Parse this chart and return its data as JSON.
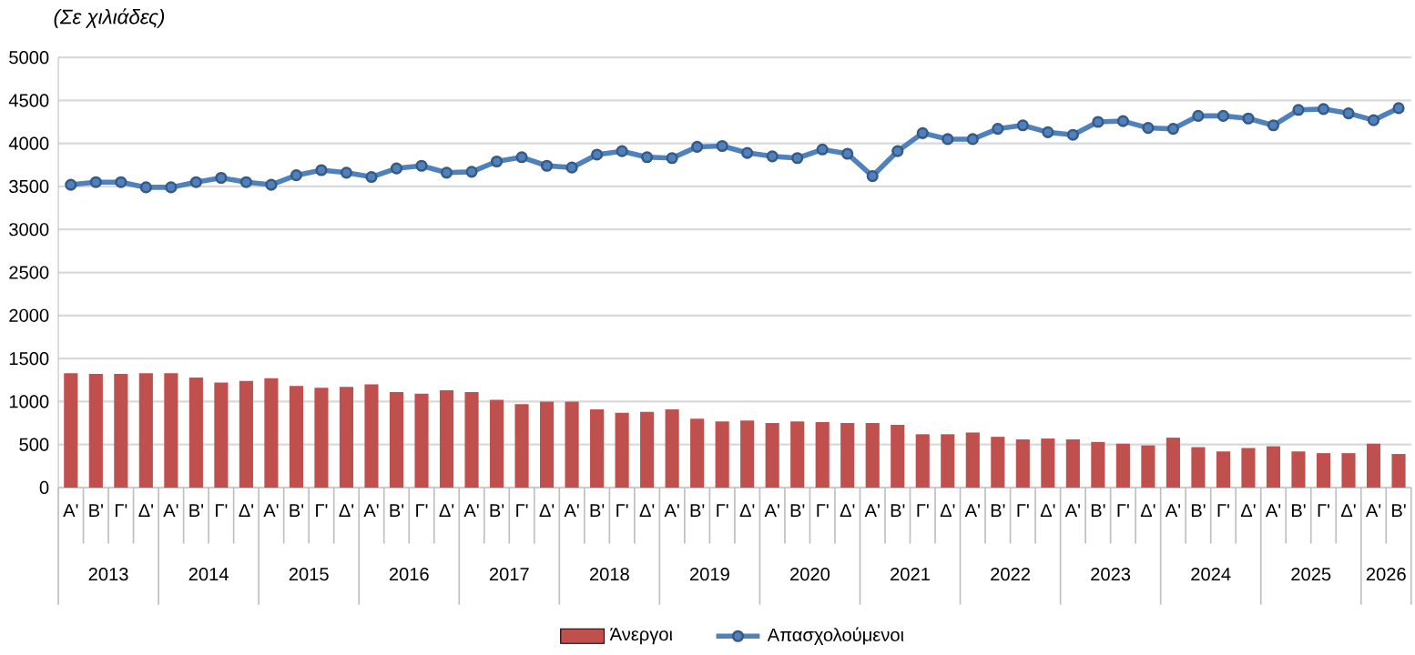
{
  "chart_data": {
    "type": "bar",
    "ylabel": "(Σε χιλιάδες)",
    "categories": [
      "Α'",
      "Β'",
      "Γ'",
      "Δ'",
      "Α'",
      "Β'",
      "Γ'",
      "Δ'",
      "Α'",
      "Β'",
      "Γ'",
      "Δ'",
      "Α'",
      "Β'",
      "Γ'",
      "Δ'",
      "Α'",
      "Β'",
      "Γ'",
      "Δ'",
      "Α'",
      "Β'",
      "Γ'",
      "Δ'",
      "Α'",
      "Β'",
      "Γ'",
      "Δ'",
      "Α'",
      "Β'",
      "Γ'",
      "Δ'",
      "Α'",
      "Β'",
      "Γ'",
      "Δ'",
      "Α'",
      "Β'",
      "Γ'",
      "Δ'",
      "Α'",
      "Β'",
      "Γ'",
      "Δ'",
      "Α'",
      "Β'",
      "Γ'",
      "Δ'",
      "Α'",
      "Β'",
      "Γ'",
      "Δ'",
      "Α'",
      "Β'"
    ],
    "annotations": [
      "2013",
      "2014",
      "2015",
      "2016",
      "2017",
      "2018",
      "2019",
      "2020",
      "2021",
      "2022",
      "2023",
      "2024",
      "2025",
      "2026"
    ],
    "series": [
      {
        "name": "Άνεργοι",
        "color": "#c0504d",
        "values": [
          1330,
          1320,
          1320,
          1330,
          1330,
          1280,
          1220,
          1240,
          1270,
          1180,
          1160,
          1170,
          1200,
          1110,
          1090,
          1130,
          1110,
          1020,
          970,
          1000,
          1000,
          910,
          870,
          880,
          910,
          800,
          770,
          780,
          750,
          770,
          760,
          750,
          750,
          730,
          620,
          620,
          640,
          590,
          560,
          570,
          560,
          530,
          510,
          490,
          580,
          470,
          420,
          460,
          480,
          420,
          400,
          400,
          510,
          390
        ]
      },
      {
        "name": "Απασχολούμενοι",
        "type": "line",
        "color": "#4f81bd",
        "values": [
          3520,
          3550,
          3550,
          3490,
          3490,
          3550,
          3600,
          3550,
          3520,
          3630,
          3690,
          3660,
          3610,
          3710,
          3740,
          3660,
          3670,
          3790,
          3840,
          3740,
          3720,
          3870,
          3910,
          3840,
          3830,
          3960,
          3970,
          3890,
          3850,
          3830,
          3930,
          3880,
          3620,
          3910,
          4120,
          4050,
          4050,
          4170,
          4210,
          4130,
          4100,
          4250,
          4260,
          4180,
          4170,
          4320,
          4320,
          4290,
          4210,
          4390,
          4400,
          4350,
          4270,
          4410
        ]
      }
    ],
    "ylim": [
      0,
      5000
    ],
    "yticks": [
      0,
      500,
      1000,
      1500,
      2000,
      2500,
      3000,
      3500,
      4000,
      4500,
      5000
    ],
    "grid": "y",
    "legend": "bottom",
    "marker": "circle",
    "line_style": "solid"
  }
}
